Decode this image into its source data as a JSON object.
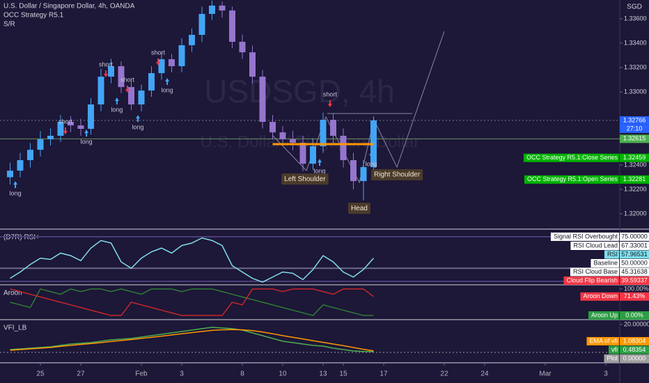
{
  "chart_data": [
    {
      "type": "candlestick",
      "title": "U.S. Dollar / Singapore Dollar, 4h, OANDA",
      "indicators": [
        "OCC Strategy R5.1",
        "S/R"
      ],
      "watermark": [
        "USDSGD, 4h",
        "U.S. Dollar / Singapore Dollar"
      ],
      "axis_unit": "SGD",
      "x": [
        -1.5,
        -1,
        -0.5,
        0,
        0.5,
        1,
        1.5,
        2,
        2.5,
        3,
        3.5,
        4,
        4.5,
        5,
        5.5,
        6,
        6.5,
        7,
        7.5,
        8,
        8.5,
        9,
        9.5,
        10,
        10.5,
        11,
        11.5,
        12,
        12.5,
        13,
        13.5,
        14,
        14.5,
        15,
        15.5,
        16,
        16.5
      ],
      "open": [
        1.323,
        1.32354,
        1.3244,
        1.32525,
        1.32611,
        1.3264,
        1.32754,
        1.32725,
        1.32697,
        1.32897,
        1.33125,
        1.33211,
        1.3304,
        1.32897,
        1.33011,
        1.33154,
        1.33268,
        1.33211,
        1.33383,
        1.33468,
        1.3364,
        1.33708,
        1.33668,
        1.33411,
        1.33325,
        1.33125,
        1.32754,
        1.32668,
        1.32611,
        1.32583,
        1.32411,
        1.32554,
        1.32771,
        1.3264,
        1.3244,
        1.32268,
        1.32383
      ],
      "high": [
        1.3242,
        1.325,
        1.3258,
        1.3268,
        1.327,
        1.3281,
        1.328,
        1.3278,
        1.3295,
        1.3319,
        1.3327,
        1.3325,
        1.3309,
        1.3306,
        1.3321,
        1.3332,
        1.3331,
        1.3344,
        1.3352,
        1.337,
        1.3375,
        1.3374,
        1.337,
        1.3347,
        1.3338,
        1.3318,
        1.3281,
        1.3272,
        1.3268,
        1.3264,
        1.3262,
        1.3283,
        1.3282,
        1.327,
        1.325,
        1.3244,
        1.328
      ],
      "low": [
        1.3224,
        1.323,
        1.3238,
        1.3247,
        1.3256,
        1.3259,
        1.3267,
        1.3264,
        1.3265,
        1.3284,
        1.3307,
        1.3299,
        1.3285,
        1.3284,
        1.3296,
        1.331,
        1.3316,
        1.3316,
        1.3333,
        1.3341,
        1.3359,
        1.3361,
        1.3336,
        1.3327,
        1.3307,
        1.327,
        1.3261,
        1.3256,
        1.3252,
        1.3235,
        1.3236,
        1.325,
        1.3258,
        1.3238,
        1.322,
        1.3211,
        1.3233
      ],
      "close": [
        1.32354,
        1.3244,
        1.32525,
        1.32611,
        1.3264,
        1.32754,
        1.32725,
        1.32697,
        1.32897,
        1.33125,
        1.33211,
        1.3304,
        1.32897,
        1.33011,
        1.33154,
        1.33268,
        1.33211,
        1.33383,
        1.33468,
        1.3364,
        1.33708,
        1.33668,
        1.33411,
        1.33325,
        1.33125,
        1.32754,
        1.32668,
        1.32611,
        1.32583,
        1.32411,
        1.32554,
        1.32771,
        1.3264,
        1.3244,
        1.32268,
        1.32383,
        1.32766
      ],
      "up_color": "#42a5f5",
      "down_color": "#9575cd",
      "xlim": [
        -2,
        28.69
      ],
      "xticks": [
        {
          "value": 0,
          "label": "25"
        },
        {
          "value": 2,
          "label": "27"
        },
        {
          "value": 5,
          "label": "Feb"
        },
        {
          "value": 7,
          "label": "3"
        },
        {
          "value": 10,
          "label": "8"
        },
        {
          "value": 12,
          "label": "10"
        },
        {
          "value": 14,
          "label": "13"
        },
        {
          "value": 15,
          "label": "15"
        },
        {
          "value": 17,
          "label": "17"
        },
        {
          "value": 20,
          "label": "22"
        },
        {
          "value": 22,
          "label": "24"
        },
        {
          "value": 25,
          "label": "Mar"
        },
        {
          "value": 28,
          "label": "3"
        }
      ],
      "ylim": [
        1.3188,
        1.33754
      ],
      "yticks": [
        {
          "value": 1.336,
          "label": "1.33600"
        },
        {
          "value": 1.334,
          "label": "1.33400"
        },
        {
          "value": 1.332,
          "label": "1.33200"
        },
        {
          "value": 1.33,
          "label": "1.33000"
        },
        {
          "value": 1.324,
          "label": "1.32400"
        },
        {
          "value": 1.322,
          "label": "1.32200"
        },
        {
          "value": 1.32,
          "label": "1.32000"
        }
      ],
      "levels": [
        {
          "value": 1.32766,
          "color": "#2962ff",
          "text_color": "#ffffff",
          "line": "#787b86",
          "dash": true,
          "countdown": "27:10"
        },
        {
          "value": 1.32615,
          "color": "#4caf50",
          "text_color": "#ffffff",
          "line": "#6b8f5a"
        },
        {
          "name": "OCC Strategy R5.1:Close Series",
          "value": 1.32459,
          "color": "#00b300",
          "text_color": "#ffffff"
        },
        {
          "name": "OCC Strategy R5.1:Open Series",
          "value": 1.32281,
          "color": "#00b300",
          "text_color": "#ffffff"
        }
      ],
      "segments": [
        {
          "value": 1.32571,
          "from": 11.5,
          "to": 16.5,
          "color": "#ff9800"
        }
      ],
      "signals": [
        {
          "label": "long",
          "x": -1.24,
          "y": 1.32165,
          "color": "#42a5f5",
          "arrow": "up"
        },
        {
          "label": "short",
          "x": 1.24,
          "y": 1.32754,
          "color": "#f23645",
          "arrow": "down"
        },
        {
          "label": "long",
          "x": 2.28,
          "y": 1.32588,
          "color": "#42a5f5",
          "arrow": "up"
        },
        {
          "label": "short",
          "x": 3.24,
          "y": 1.33223,
          "color": "#f23645",
          "arrow": "down"
        },
        {
          "label": "long",
          "x": 3.79,
          "y": 1.32851,
          "color": "#42a5f5",
          "arrow": "up"
        },
        {
          "label": "short",
          "x": 4.31,
          "y": 1.33097,
          "color": "#f23645",
          "arrow": "down"
        },
        {
          "label": "long",
          "x": 4.83,
          "y": 1.32708,
          "color": "#42a5f5",
          "arrow": "up"
        },
        {
          "label": "short",
          "x": 5.83,
          "y": 1.3332,
          "color": "#f23645",
          "arrow": "down"
        },
        {
          "label": "long",
          "x": 6.28,
          "y": 1.33011,
          "color": "#42a5f5",
          "arrow": "up"
        },
        {
          "label": "short",
          "x": 14.34,
          "y": 1.32977,
          "color": "#f23645",
          "arrow": "down"
        },
        {
          "label": "long",
          "x": 13.83,
          "y": 1.32348,
          "color": "#42a5f5",
          "arrow": "up"
        },
        {
          "label": "long",
          "x": 16.38,
          "y": 1.32405,
          "color": "#42a5f5",
          "arrow": "up"
        }
      ],
      "annotations": [
        {
          "text": "Left Shoulder",
          "x": 13.1,
          "y": 1.32285
        },
        {
          "text": "Right Shoulder",
          "x": 17.66,
          "y": 1.3232
        },
        {
          "text": "Head",
          "x": 15.79,
          "y": 1.32045
        }
      ]
    },
    {
      "type": "line",
      "title": "(D7R) RSI+",
      "series": [
        {
          "color": "#80deea",
          "values": [
            42,
            47,
            53,
            58,
            57,
            62,
            60,
            56,
            66,
            72,
            70,
            55,
            50,
            58,
            63,
            66,
            62,
            68,
            70,
            74,
            72,
            68,
            52,
            47,
            42,
            39,
            43,
            47,
            46,
            41,
            49,
            60,
            55,
            47,
            43,
            49,
            57.96531
          ]
        }
      ],
      "ylim": [
        37.4,
        80.5
      ],
      "levels": [
        {
          "name": "Signal RSI Overbought",
          "value": 75,
          "label": "75.00000",
          "color": "#ffffff",
          "text_color": "#131722",
          "line": "#4a3d78"
        },
        {
          "name": "RSI Cloud Lead",
          "value": 67.33001,
          "color": "#ffffff",
          "text_color": "#131722"
        },
        {
          "name": "RSI",
          "value": 57.96531,
          "color": "#80deea",
          "text_color": "#131722"
        },
        {
          "name": "Baseline",
          "value": 50,
          "label": "50.00000",
          "color": "#ffffff",
          "text_color": "#131722",
          "line": "#6c6a8a"
        },
        {
          "name": "RSI Cloud Base",
          "value": 45.31638,
          "color": "#ffffff",
          "text_color": "#131722"
        },
        {
          "name": "Cloud Flip Bearish",
          "value": 39.59337,
          "color": "#f23645",
          "text_color": "#ffffff",
          "line": "#4a3d78"
        }
      ]
    },
    {
      "type": "line",
      "title": "Aroon",
      "series": [
        {
          "color": "#2e7d32",
          "values": [
            50,
            40,
            30,
            100,
            90,
            80,
            100,
            90,
            100,
            100,
            90,
            100,
            90,
            80,
            100,
            100,
            100,
            90,
            100,
            100,
            100,
            90,
            80,
            70,
            60,
            50,
            40,
            30,
            20,
            10,
            0,
            40,
            30,
            20,
            10,
            0,
            0
          ]
        },
        {
          "color": "#c62828",
          "values": [
            100,
            90,
            80,
            70,
            60,
            50,
            40,
            30,
            20,
            10,
            0,
            0,
            50,
            40,
            30,
            20,
            10,
            0,
            0,
            0,
            0,
            0,
            50,
            40,
            100,
            100,
            100,
            90,
            100,
            100,
            100,
            90,
            80,
            100,
            100,
            100,
            71.43
          ]
        }
      ],
      "ylim": [
        -13,
        113
      ],
      "yticks": [
        {
          "value": 100,
          "label": "100.00%"
        }
      ],
      "levels": [
        {
          "name": "Aroon Down",
          "value": 71.43,
          "label": "71.43%",
          "color": "#f23645",
          "text_color": "#ffffff"
        },
        {
          "name": "Aroon Up",
          "value": 0,
          "label": "0.00%",
          "color": "#2e9e44",
          "text_color": "#ffffff"
        }
      ]
    },
    {
      "type": "line",
      "title": "VFI_LB",
      "series": [
        {
          "color": "#4caf50",
          "values": [
            2,
            2.5,
            3,
            3.5,
            4,
            5,
            6,
            6.5,
            7,
            8,
            9,
            9.5,
            10,
            11,
            12,
            13,
            14,
            15,
            16,
            17,
            18,
            17.5,
            17,
            16,
            14,
            12,
            10,
            8,
            7,
            6,
            5,
            4.5,
            3,
            2,
            1,
            0.6,
            0.48354
          ]
        },
        {
          "color": "#ff9800",
          "values": [
            1.5,
            2,
            2.5,
            3,
            3.5,
            4.3,
            5,
            5.7,
            6.3,
            7,
            7.8,
            8.5,
            9.2,
            10,
            10.8,
            11.6,
            12.5,
            13.4,
            14.2,
            15,
            15.8,
            16.2,
            16.4,
            16.2,
            15.6,
            14.6,
            13.4,
            12,
            10.8,
            9.6,
            8.4,
            7.2,
            6,
            4.8,
            3.5,
            2.2,
            1.08304
          ]
        }
      ],
      "ylim": [
        -7,
        23
      ],
      "yticks": [
        {
          "value": 20,
          "label": "20.00000"
        }
      ],
      "levels": [
        {
          "name": "EMA of vfi",
          "value": 1.08304,
          "color": "#ff9800",
          "text_color": "#ffffff"
        },
        {
          "name": "vfi",
          "value": 0.48354,
          "color": "#2e9e44",
          "text_color": "#ffffff"
        },
        {
          "name": "Plot",
          "value": 0,
          "label": "0.00000",
          "color": "#9e9e9e",
          "text_color": "#ffffff",
          "line": "#9e9e9e",
          "dash": true
        }
      ]
    }
  ]
}
